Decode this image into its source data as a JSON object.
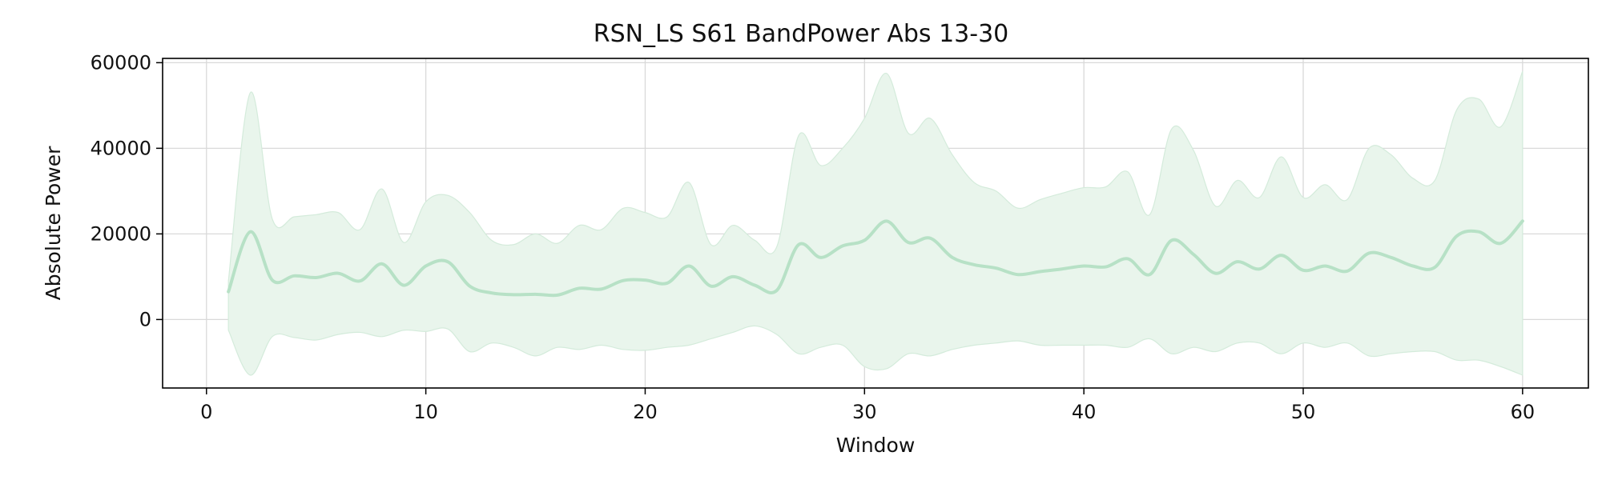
{
  "chart_data": {
    "type": "line",
    "title": "RSN_LS S61 BandPower Abs 13-30",
    "xlabel": "Window",
    "ylabel": "Absolute Power",
    "xlim": [
      -2,
      63
    ],
    "ylim": [
      -16000,
      61000
    ],
    "xticks": [
      0,
      10,
      20,
      30,
      40,
      50,
      60
    ],
    "yticks": [
      0,
      20000,
      40000,
      60000
    ],
    "grid": true,
    "colors": {
      "line": "#b7e1c6",
      "band": "#e9f5ec",
      "band_edge": "#d4ebdb"
    },
    "series": [
      {
        "x": [
          1,
          2,
          3,
          4,
          5,
          6,
          7,
          8,
          9,
          10,
          11,
          12,
          13,
          14,
          15,
          16,
          17,
          18,
          19,
          20,
          21,
          22,
          23,
          24,
          25,
          26,
          27,
          28,
          29,
          30,
          31,
          32,
          33,
          34,
          35,
          36,
          37,
          38,
          39,
          40,
          41,
          42,
          43,
          44,
          45,
          46,
          47,
          48,
          49,
          50,
          51,
          52,
          53,
          54,
          55,
          56,
          57,
          58,
          59,
          60
        ],
        "mean": [
          6500,
          20500,
          9200,
          10200,
          9800,
          10800,
          9000,
          13000,
          8000,
          12500,
          13500,
          7800,
          6200,
          5800,
          5900,
          5700,
          7300,
          7100,
          9100,
          9200,
          8500,
          12500,
          7800,
          10000,
          8000,
          6800,
          17500,
          14500,
          17200,
          18500,
          23000,
          18000,
          19000,
          14500,
          12800,
          12000,
          10500,
          11200,
          11800,
          12500,
          12300,
          14200,
          10500,
          18500,
          15200,
          10800,
          13500,
          11800,
          15000,
          11500,
          12500,
          11300,
          15500,
          14500,
          12500,
          12200,
          19500,
          20500,
          17800,
          23000
        ],
        "upper": [
          9000,
          53000,
          23500,
          24000,
          24500,
          25000,
          21000,
          30500,
          18000,
          27500,
          29000,
          25000,
          18500,
          17500,
          20000,
          17800,
          22000,
          21000,
          26000,
          25000,
          24000,
          32000,
          17500,
          22000,
          18500,
          17000,
          43000,
          36000,
          40000,
          47000,
          57500,
          43500,
          47000,
          38500,
          32000,
          30000,
          26000,
          28000,
          29500,
          30800,
          31000,
          34500,
          24500,
          44500,
          39500,
          26500,
          32500,
          28500,
          38000,
          28500,
          31500,
          28000,
          40000,
          38500,
          33000,
          32500,
          49000,
          51500,
          45000,
          58000
        ],
        "lower": [
          -2500,
          -13000,
          -4000,
          -4200,
          -4800,
          -3500,
          -3000,
          -4000,
          -2500,
          -2800,
          -2200,
          -7500,
          -5500,
          -6500,
          -8500,
          -6500,
          -7000,
          -6000,
          -7000,
          -7200,
          -6500,
          -6000,
          -4500,
          -3000,
          -1500,
          -3500,
          -8000,
          -6500,
          -6000,
          -11000,
          -11500,
          -8000,
          -8500,
          -7000,
          -6000,
          -5500,
          -5000,
          -6000,
          -6000,
          -6000,
          -6000,
          -6500,
          -4500,
          -8000,
          -6500,
          -7500,
          -5500,
          -5500,
          -8000,
          -5500,
          -6500,
          -5500,
          -8500,
          -8000,
          -7500,
          -7500,
          -9500,
          -9500,
          -11000,
          -13000
        ]
      }
    ]
  }
}
